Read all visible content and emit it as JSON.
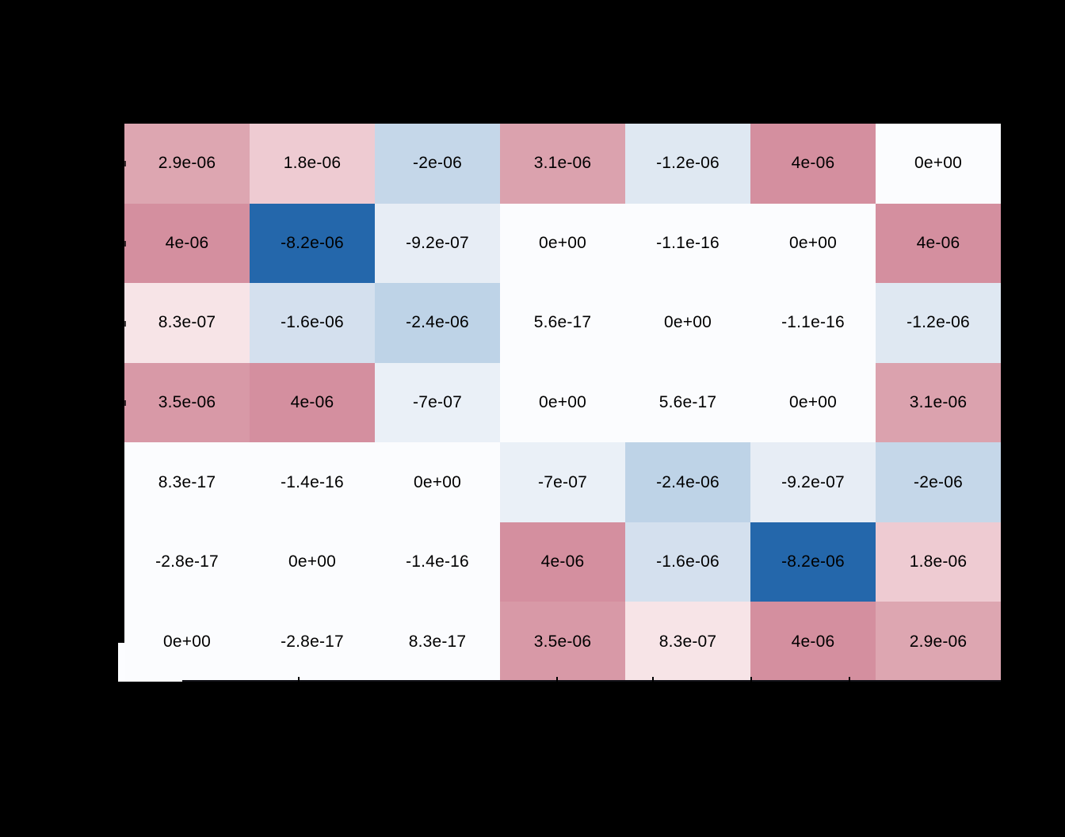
{
  "canvas": {
    "background": "#000000"
  },
  "chart_data": {
    "type": "heatmap",
    "grid": {
      "rows": 7,
      "cols": 7
    },
    "legend": "none",
    "colormap": {
      "type": "diverging",
      "negative_end": "#2467ab",
      "mid": "#fbfcfe",
      "positive_shown_max": "#d48f9f",
      "domain": [
        -8.2e-06,
        8.2e-06
      ]
    },
    "cells": [
      [
        {
          "label": "2.9e-06",
          "value": 2.9e-06,
          "color": "#dda6b1"
        },
        {
          "label": "1.8e-06",
          "value": 1.8e-06,
          "color": "#eecbd2"
        },
        {
          "label": "-2e-06",
          "value": -2e-06,
          "color": "#c5d7e9"
        },
        {
          "label": "3.1e-06",
          "value": 3.1e-06,
          "color": "#dba2ae"
        },
        {
          "label": "-1.2e-06",
          "value": -1.2e-06,
          "color": "#dfe8f2"
        },
        {
          "label": "4e-06",
          "value": 4e-06,
          "color": "#d48f9f"
        },
        {
          "label": "0e+00",
          "value": 0,
          "color": "#fbfcfe"
        }
      ],
      [
        {
          "label": "4e-06",
          "value": 4e-06,
          "color": "#d48f9f"
        },
        {
          "label": "-8.2e-06",
          "value": -8.2e-06,
          "color": "#2467ab"
        },
        {
          "label": "-9.2e-07",
          "value": -9.2e-07,
          "color": "#e7edf5"
        },
        {
          "label": "0e+00",
          "value": 0,
          "color": "#fbfcfe"
        },
        {
          "label": "-1.1e-16",
          "value": -1.1e-16,
          "color": "#fbfcfe"
        },
        {
          "label": "0e+00",
          "value": 0,
          "color": "#fbfcfe"
        },
        {
          "label": "4e-06",
          "value": 4e-06,
          "color": "#d48f9f"
        }
      ],
      [
        {
          "label": "8.3e-07",
          "value": 8.3e-07,
          "color": "#f7e4e7"
        },
        {
          "label": "-1.6e-06",
          "value": -1.6e-06,
          "color": "#d4e0ee"
        },
        {
          "label": "-2.4e-06",
          "value": -2.4e-06,
          "color": "#bed3e7"
        },
        {
          "label": "5.6e-17",
          "value": 5.6e-17,
          "color": "#fbfcfe"
        },
        {
          "label": "0e+00",
          "value": 0,
          "color": "#fbfcfe"
        },
        {
          "label": "-1.1e-16",
          "value": -1.1e-16,
          "color": "#fbfcfe"
        },
        {
          "label": "-1.2e-06",
          "value": -1.2e-06,
          "color": "#dfe8f2"
        }
      ],
      [
        {
          "label": "3.5e-06",
          "value": 3.5e-06,
          "color": "#d899a7"
        },
        {
          "label": "4e-06",
          "value": 4e-06,
          "color": "#d48f9f"
        },
        {
          "label": "-7e-07",
          "value": -7e-07,
          "color": "#eaf0f7"
        },
        {
          "label": "0e+00",
          "value": 0,
          "color": "#fbfcfe"
        },
        {
          "label": "5.6e-17",
          "value": 5.6e-17,
          "color": "#fbfcfe"
        },
        {
          "label": "0e+00",
          "value": 0,
          "color": "#fbfcfe"
        },
        {
          "label": "3.1e-06",
          "value": 3.1e-06,
          "color": "#dba2ae"
        }
      ],
      [
        {
          "label": "8.3e-17",
          "value": 8.3e-17,
          "color": "#fbfcfe"
        },
        {
          "label": "-1.4e-16",
          "value": -1.4e-16,
          "color": "#fbfcfe"
        },
        {
          "label": "0e+00",
          "value": 0,
          "color": "#fbfcfe"
        },
        {
          "label": "-7e-07",
          "value": -7e-07,
          "color": "#eaf0f7"
        },
        {
          "label": "-2.4e-06",
          "value": -2.4e-06,
          "color": "#bed3e7"
        },
        {
          "label": "-9.2e-07",
          "value": -9.2e-07,
          "color": "#e7edf5"
        },
        {
          "label": "-2e-06",
          "value": -2e-06,
          "color": "#c5d7e9"
        }
      ],
      [
        {
          "label": "-2.8e-17",
          "value": -2.8e-17,
          "color": "#fbfcfe"
        },
        {
          "label": "0e+00",
          "value": 0,
          "color": "#fbfcfe"
        },
        {
          "label": "-1.4e-16",
          "value": -1.4e-16,
          "color": "#fbfcfe"
        },
        {
          "label": "4e-06",
          "value": 4e-06,
          "color": "#d48f9f"
        },
        {
          "label": "-1.6e-06",
          "value": -1.6e-06,
          "color": "#d4e0ee"
        },
        {
          "label": "-8.2e-06",
          "value": -8.2e-06,
          "color": "#2467ab"
        },
        {
          "label": "1.8e-06",
          "value": 1.8e-06,
          "color": "#eecbd2"
        }
      ],
      [
        {
          "label": "0e+00",
          "value": 0,
          "color": "#fbfcfe"
        },
        {
          "label": "-2.8e-17",
          "value": -2.8e-17,
          "color": "#fbfcfe"
        },
        {
          "label": "8.3e-17",
          "value": 8.3e-17,
          "color": "#fbfcfe"
        },
        {
          "label": "3.5e-06",
          "value": 3.5e-06,
          "color": "#d899a7"
        },
        {
          "label": "8.3e-07",
          "value": 8.3e-07,
          "color": "#f7e4e7"
        },
        {
          "label": "4e-06",
          "value": 4e-06,
          "color": "#d48f9f"
        },
        {
          "label": "2.9e-06",
          "value": 2.9e-06,
          "color": "#dda6b1"
        }
      ]
    ]
  }
}
